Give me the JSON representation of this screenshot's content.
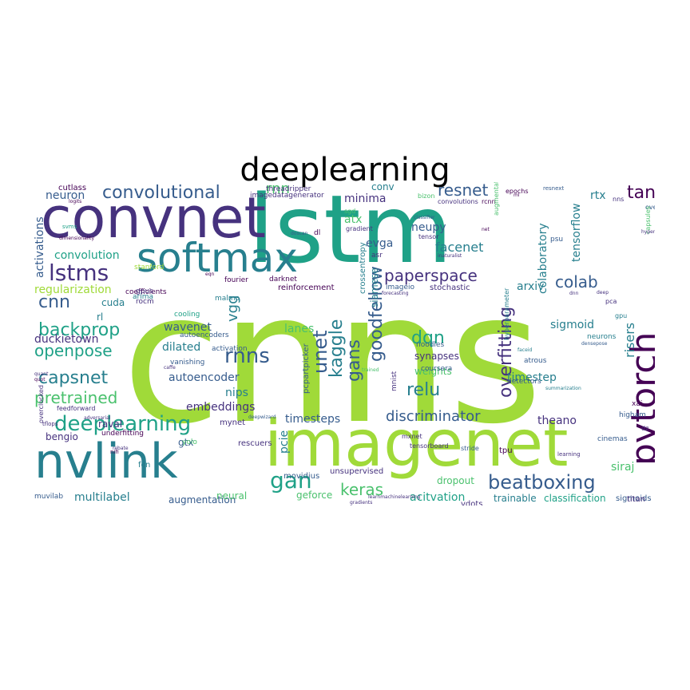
{
  "title": "deeplearning",
  "palette": [
    "#440154",
    "#46327e",
    "#365c8d",
    "#277f8e",
    "#1fa187",
    "#4ac16d",
    "#a0da39",
    "#fde725"
  ],
  "big_words": [
    "cnns",
    "lstm",
    "convnet",
    "imagenet",
    "nvlink",
    "pytorch",
    "softmax",
    "beatboxing",
    "backpropagation",
    "rnns",
    "deeplearning",
    "lstms",
    "convolutional",
    "resnet",
    "gans",
    "goodfellow",
    "unet",
    "kaggle",
    "cnn",
    "backprop",
    "capsnet",
    "pretrained",
    "openpose",
    "overfitting",
    "colab",
    "tanh",
    "dqn",
    "relu",
    "discriminator",
    "gan",
    "keras",
    "paperspace",
    "facenet",
    "tensorflow",
    "colaboratory",
    "rnn",
    "vgg",
    "neuron",
    "activations",
    "convolution",
    "regularization",
    "duckietown",
    "wavenet",
    "autoencoder",
    "dilated",
    "embeddings",
    "nips",
    "evga",
    "minima",
    "atx",
    "neupy",
    "sigmoid",
    "timestep",
    "risers",
    "rtx",
    "arxiv",
    "theano",
    "siamese",
    "acitvation",
    "multilabel",
    "siraj",
    "augmentation",
    "trainable",
    "classification",
    "sigmoids",
    "dropout",
    "gtx",
    "bengio",
    "raval",
    "cuda",
    "rl",
    "conv",
    "pcie",
    "timesteps",
    "lanes",
    "synapses",
    "weights",
    "neural",
    "geforce",
    "vdots",
    "titan",
    "crossentropy",
    "stochastic",
    "imageio",
    "reinforcement",
    "noodles",
    "mnist",
    "pcpartpicker",
    "detectors",
    "atrous",
    "psu",
    "xai",
    "higham",
    "cinemas",
    "tpu",
    "stride",
    "movidius",
    "unsupervised",
    "mynet",
    "rescuers",
    "fcn",
    "muvilab",
    "underfitting",
    "coefficients",
    "fourier",
    "darknet",
    "rocm",
    "gpus",
    "arima",
    "stanford",
    "cooling",
    "vanishing",
    "autoencoders",
    "activation",
    "malmo",
    "yolo",
    "hyperparameter",
    "sgd",
    "gradient",
    "tensor",
    "coursera",
    "asr",
    "neurons",
    "pca",
    "gpu",
    "overfit",
    "capsules",
    "nns",
    "resnext",
    "bizon",
    "convolutions",
    "rcnn",
    "epochs",
    "augmentations",
    "dl",
    "cutlass",
    "imagedatagenerator",
    "threadripper",
    "svms",
    "overclocked",
    "feedforward",
    "nifi",
    "tflops",
    "quot",
    "higham",
    "dz",
    "learning",
    "deep",
    "densepose",
    "faceid",
    "summarization",
    "trained",
    "inaturalist",
    "deepwizard",
    "adversarial",
    "caffe",
    "quant",
    "eqn",
    "ml",
    "net",
    "rebate",
    "hyperas",
    "mxnet",
    "tensorboard",
    "learnmachinelearning",
    "gradients",
    "forecasting",
    "dnn",
    "dimensionality",
    "logits",
    "doscan",
    "classifier",
    "mnist"
  ]
}
